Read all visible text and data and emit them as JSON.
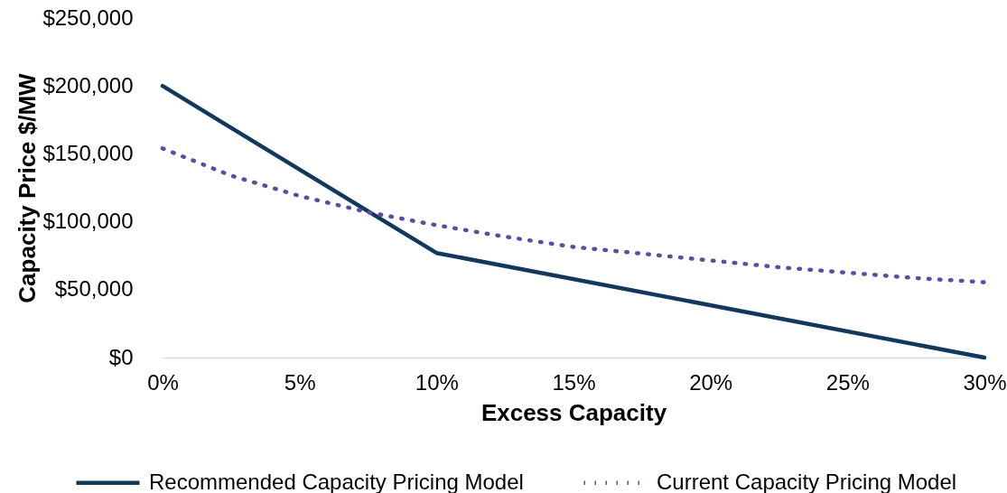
{
  "chart_data": {
    "type": "line",
    "xlabel": "Excess Capacity",
    "ylabel": "Capacity Price $/MW",
    "xlim": [
      0,
      30
    ],
    "xticks": [
      {
        "value": 0,
        "label": "0%"
      },
      {
        "value": 5,
        "label": "5%"
      },
      {
        "value": 10,
        "label": "10%"
      },
      {
        "value": 15,
        "label": "15%"
      },
      {
        "value": 20,
        "label": "20%"
      },
      {
        "value": 25,
        "label": "25%"
      },
      {
        "value": 30,
        "label": "30%"
      }
    ],
    "ylim": [
      0,
      250000
    ],
    "yticks": [
      {
        "value": 0,
        "label": "$0"
      },
      {
        "value": 50000,
        "label": "$50,000"
      },
      {
        "value": 100000,
        "label": "$100,000"
      },
      {
        "value": 150000,
        "label": "$150,000"
      },
      {
        "value": 200000,
        "label": "$200,000"
      },
      {
        "value": 250000,
        "label": "$250,000"
      }
    ],
    "grid": false,
    "legend": "bottom",
    "series": [
      {
        "name": "Recommended Capacity Pricing Model",
        "color": "#12395c",
        "line_style": "solid",
        "x": [
          0,
          10,
          30
        ],
        "values": [
          200000,
          77000,
          0
        ]
      },
      {
        "name": "Current Capacity Pricing Model",
        "color": "#5a4ea2",
        "line_style": "dotted",
        "x": [
          0,
          2.5,
          5,
          7.5,
          10,
          12.5,
          15,
          17.5,
          20,
          22.5,
          25,
          27.5,
          30
        ],
        "values": [
          154000,
          134000,
          119000,
          107000,
          97500,
          89000,
          81500,
          76500,
          71500,
          66500,
          62500,
          58500,
          55500
        ]
      }
    ]
  }
}
